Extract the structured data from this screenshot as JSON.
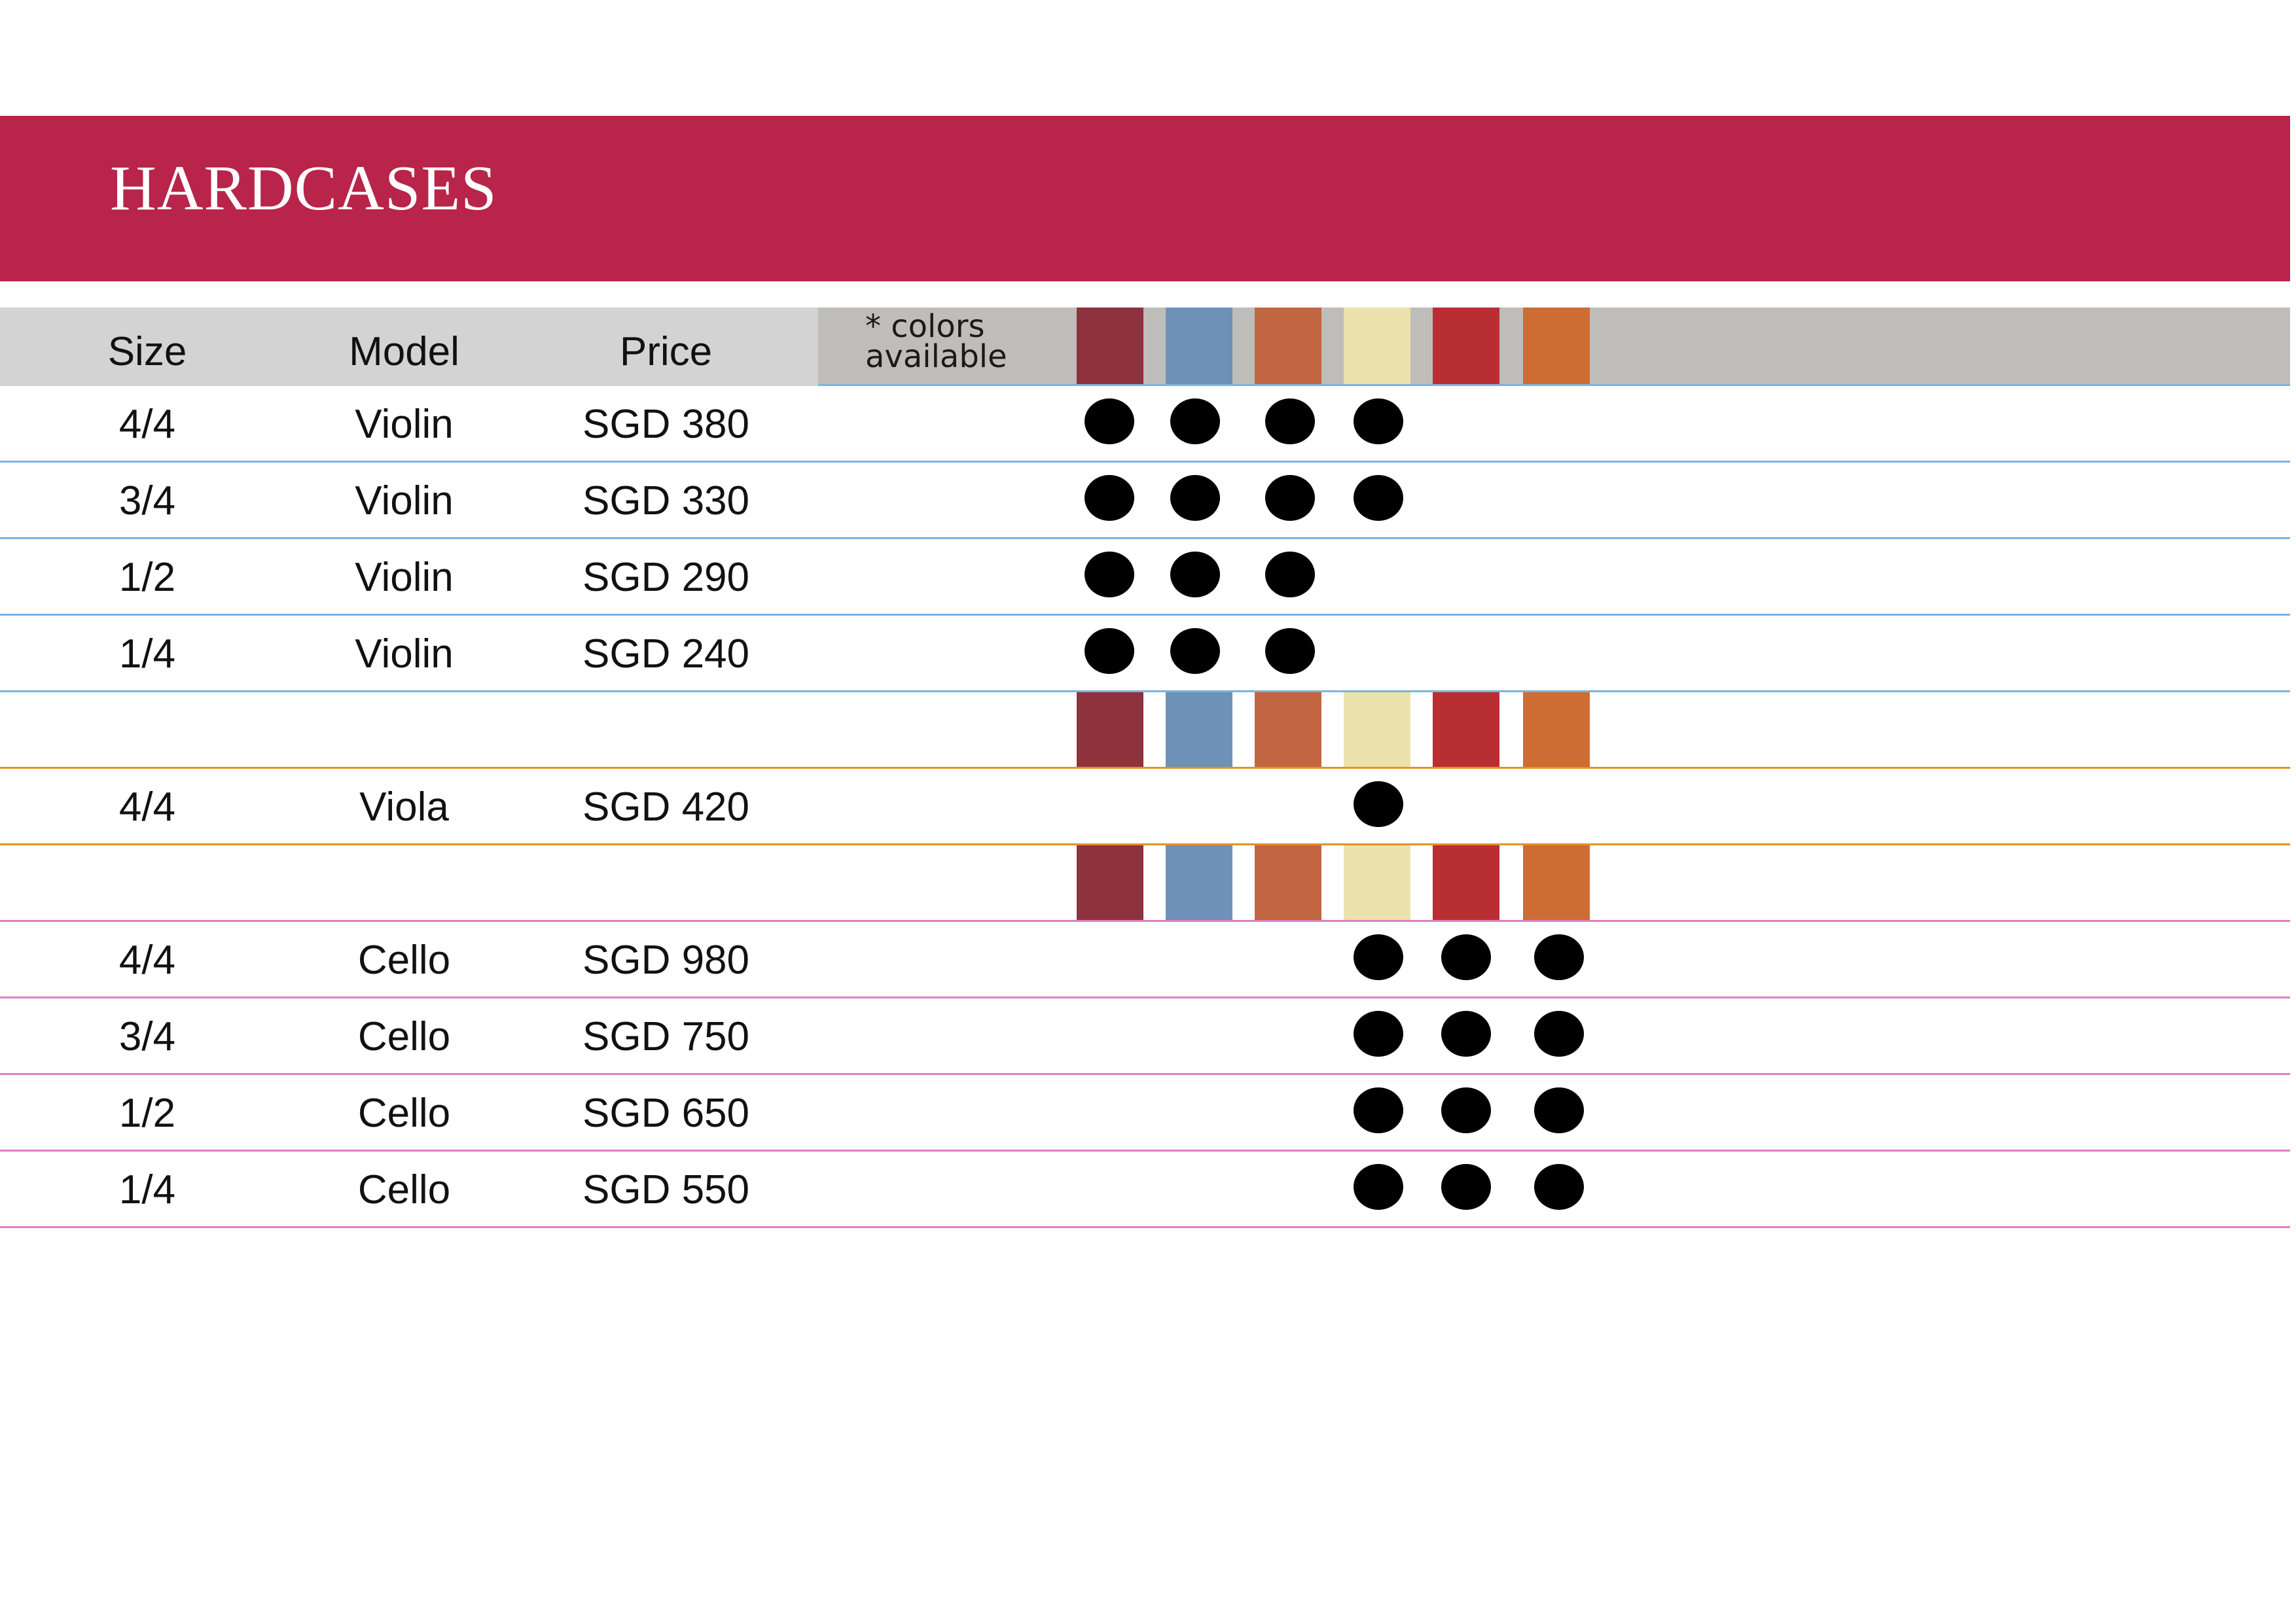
{
  "title": "HARDCASES",
  "header": {
    "size": "Size",
    "model": "Model",
    "price": "Price",
    "colors_note_line1": "* colors",
    "colors_note_line2": "available"
  },
  "colors": [
    "#8e323e",
    "#6e92b7",
    "#c26541",
    "#ece2ad",
    "#b92e32",
    "#cd6c33"
  ],
  "rows": [
    {
      "size": "4/4",
      "model": "Violin",
      "price": "SGD 380",
      "available": [
        0,
        1,
        2,
        3
      ]
    },
    {
      "size": "3/4",
      "model": "Violin",
      "price": "SGD 330",
      "available": [
        0,
        1,
        2,
        3
      ]
    },
    {
      "size": "1/2",
      "model": "Violin",
      "price": "SGD 290",
      "available": [
        0,
        1,
        2
      ]
    },
    {
      "size": "1/4",
      "model": "Violin",
      "price": "SGD 240",
      "available": [
        0,
        1,
        2
      ]
    },
    {
      "size": "4/4",
      "model": "Viola",
      "price": "SGD 420",
      "available": [
        3
      ]
    },
    {
      "size": "4/4",
      "model": "Cello",
      "price": "SGD 980",
      "available": [
        3,
        4,
        5
      ]
    },
    {
      "size": "3/4",
      "model": "Cello",
      "price": "SGD 750",
      "available": [
        3,
        4,
        5
      ]
    },
    {
      "size": "1/2",
      "model": "Cello",
      "price": "SGD 650",
      "available": [
        3,
        4,
        5
      ]
    },
    {
      "size": "1/4",
      "model": "Cello",
      "price": "SGD 550",
      "available": [
        3,
        4,
        5
      ]
    }
  ]
}
